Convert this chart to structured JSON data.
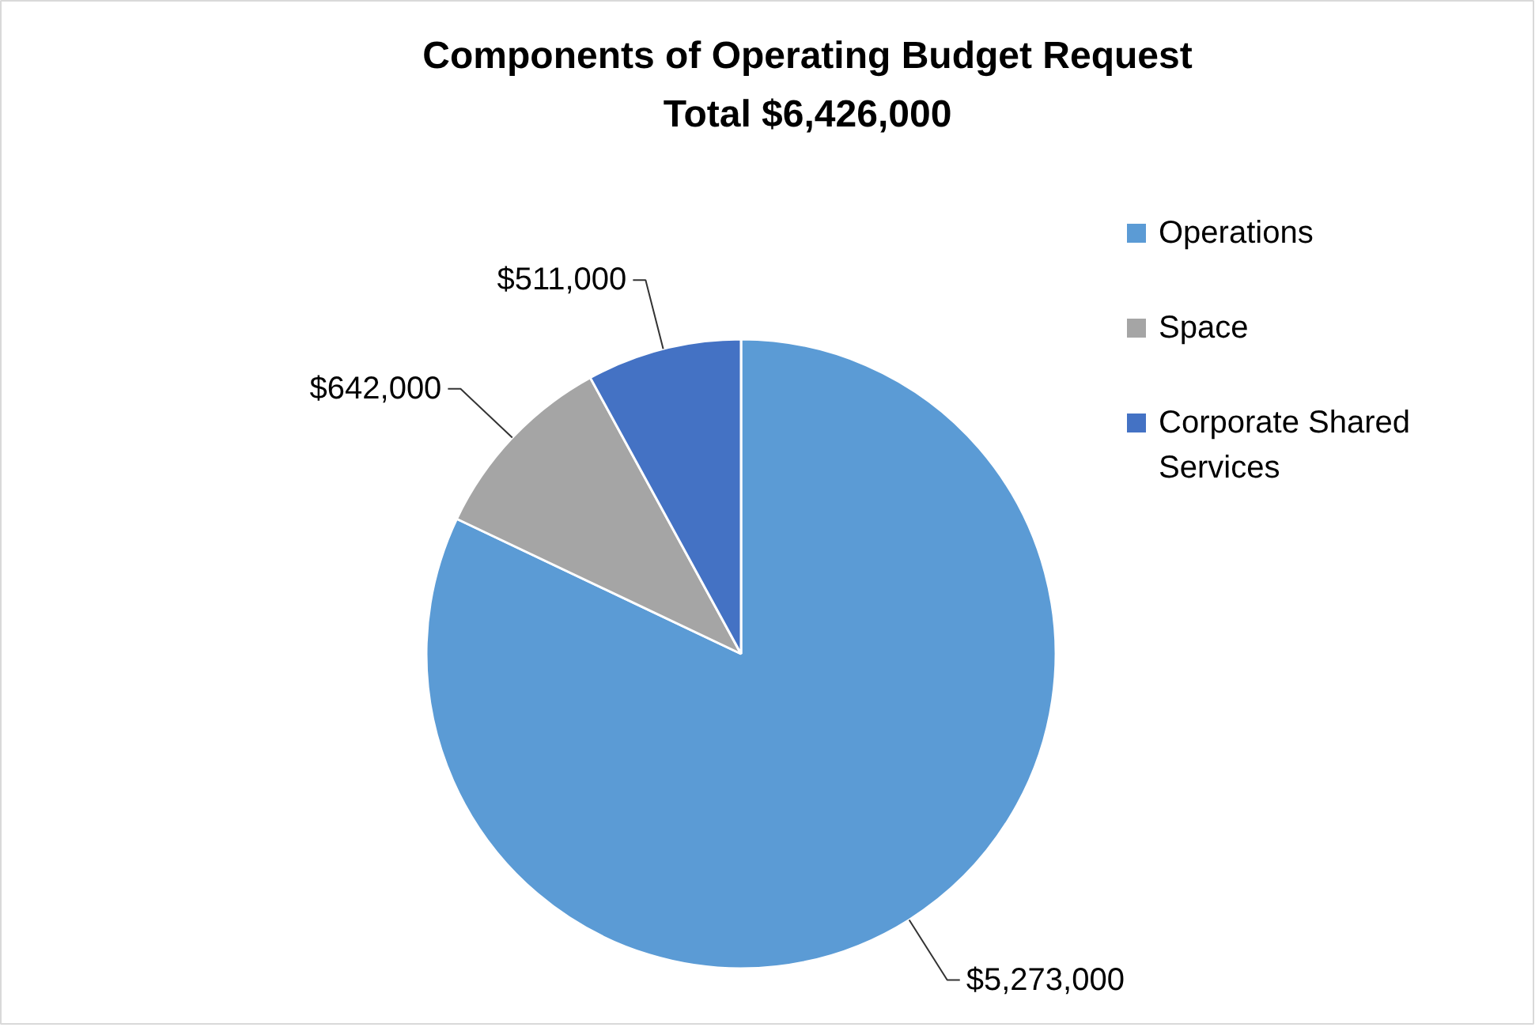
{
  "chart_data": {
    "type": "pie",
    "title": "Components of Operating Budget Request",
    "subtitle": "Total $6,426,000",
    "categories": [
      "Operations",
      "Space",
      "Corporate Shared Services"
    ],
    "values": [
      5273000,
      642000,
      511000
    ],
    "colors": [
      "#5b9bd5",
      "#a5a5a5",
      "#4472c4"
    ],
    "value_labels": [
      "$5,273,000",
      "$642,000",
      "$511,000"
    ],
    "legend": "right"
  }
}
